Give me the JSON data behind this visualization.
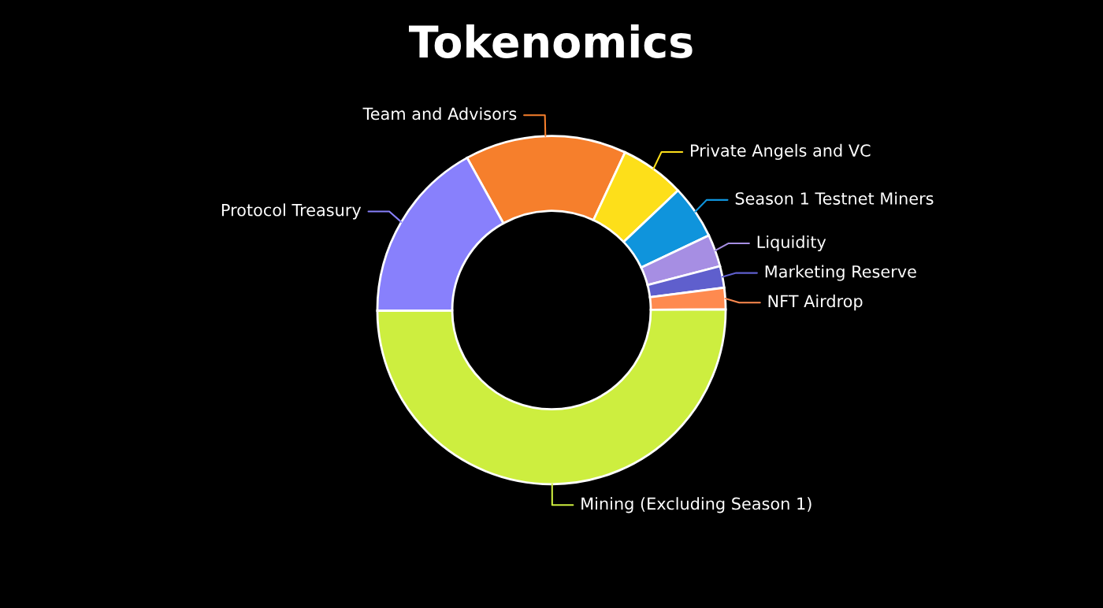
{
  "chart_data": {
    "type": "donut",
    "title": "Tokenomics",
    "categories": [
      "Team and Advisors",
      "Private Angels and VC",
      "Season 1 Testnet Miners",
      "Liquidity",
      "Marketing Reserve",
      "NFT Airdrop",
      "Mining (Excluding Season 1)",
      "Protocol Treasury"
    ],
    "values": [
      15,
      6,
      5,
      3,
      2,
      2,
      50,
      17
    ],
    "colors": [
      "#f67f2c",
      "#fddf1a",
      "#0f94dc",
      "#a68ee3",
      "#5f5fcd",
      "#fe8a4f",
      "#cdee3f",
      "#8880fc"
    ],
    "legend": false
  }
}
